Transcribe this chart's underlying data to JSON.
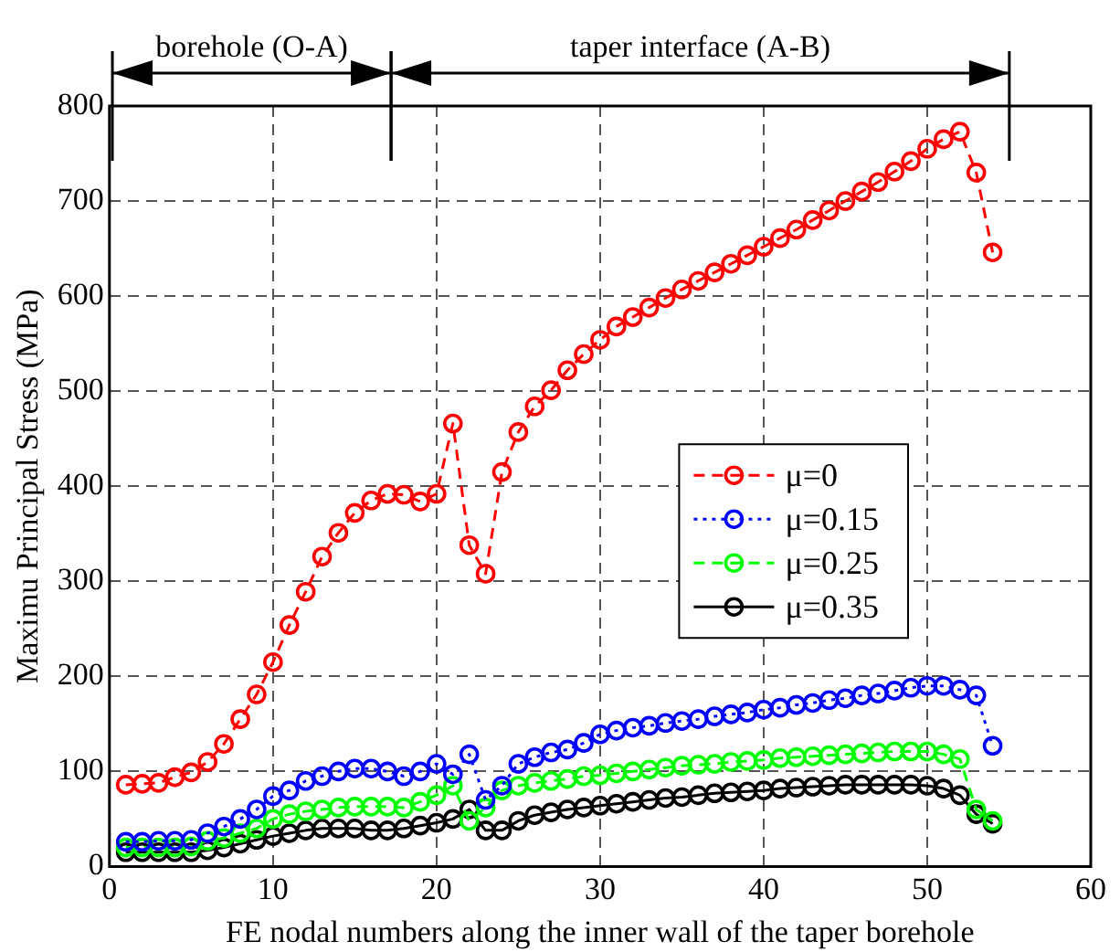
{
  "chart_data": {
    "type": "line",
    "xlabel": "FE nodal numbers along the inner wall of the taper borehole",
    "ylabel": "Maximu Principal Stress (MPa)",
    "x": [
      1,
      2,
      3,
      4,
      5,
      6,
      7,
      8,
      9,
      10,
      11,
      12,
      13,
      14,
      15,
      16,
      17,
      18,
      19,
      20,
      21,
      22,
      23,
      24,
      25,
      26,
      27,
      28,
      29,
      30,
      31,
      32,
      33,
      34,
      35,
      36,
      37,
      38,
      39,
      40,
      41,
      42,
      43,
      44,
      45,
      46,
      47,
      48,
      49,
      50,
      51,
      52,
      53,
      54
    ],
    "series": [
      {
        "name": "μ=0",
        "color": "#ff0000",
        "line_style": "dashed",
        "values": [
          86,
          87,
          88,
          94,
          99,
          110,
          129,
          155,
          181,
          215,
          254,
          289,
          326,
          351,
          372,
          385,
          392,
          391,
          384,
          392,
          466,
          338,
          308,
          415,
          457,
          484,
          501,
          522,
          539,
          554,
          568,
          578,
          588,
          598,
          607,
          616,
          625,
          634,
          643,
          652,
          661,
          670,
          680,
          690,
          700,
          710,
          720,
          731,
          742,
          755,
          765,
          773,
          730,
          646
        ]
      },
      {
        "name": "μ=0.15",
        "color": "#0000ff",
        "line_style": "dotted",
        "values": [
          26,
          26,
          27,
          27,
          28,
          35,
          42,
          50,
          60,
          74,
          80,
          90,
          95,
          100,
          103,
          103,
          100,
          95,
          100,
          108,
          97,
          118,
          70,
          85,
          108,
          115,
          120,
          123,
          130,
          139,
          143,
          146,
          148,
          151,
          153,
          155,
          158,
          160,
          162,
          165,
          167,
          170,
          172,
          175,
          177,
          180,
          182,
          185,
          188,
          190,
          190,
          186,
          180,
          127
        ]
      },
      {
        "name": "μ=0.25",
        "color": "#00ff00",
        "line_style": "dashed",
        "values": [
          20,
          20,
          20,
          20,
          21,
          27,
          30,
          35,
          40,
          50,
          55,
          58,
          60,
          62,
          63,
          63,
          63,
          62,
          68,
          75,
          85,
          48,
          62,
          80,
          85,
          88,
          90,
          92,
          95,
          96,
          98,
          100,
          102,
          104,
          106,
          107,
          108,
          110,
          111,
          112,
          114,
          115,
          116,
          117,
          118,
          119,
          120,
          121,
          121,
          121,
          118,
          113,
          60,
          48
        ]
      },
      {
        "name": "μ=0.35",
        "color": "#000000",
        "line_style": "solid",
        "values": [
          15,
          15,
          15,
          15,
          15,
          17,
          20,
          24,
          28,
          32,
          35,
          38,
          40,
          40,
          40,
          38,
          38,
          40,
          43,
          46,
          50,
          60,
          38,
          38,
          48,
          54,
          57,
          60,
          62,
          64,
          66,
          68,
          70,
          72,
          73,
          75,
          77,
          78,
          79,
          80,
          82,
          83,
          84,
          85,
          86,
          86,
          86,
          86,
          86,
          85,
          82,
          75,
          55,
          45
        ]
      }
    ],
    "xlim": [
      0,
      60
    ],
    "xticks": [
      0,
      10,
      20,
      30,
      40,
      50,
      60
    ],
    "ylim": [
      0,
      800
    ],
    "yticks": [
      0,
      100,
      200,
      300,
      400,
      500,
      600,
      700,
      800
    ],
    "grid": true,
    "legend": "right",
    "marker": "circle",
    "annotations": [
      "borehole (O-A)",
      "taper interface (A-B)"
    ]
  }
}
